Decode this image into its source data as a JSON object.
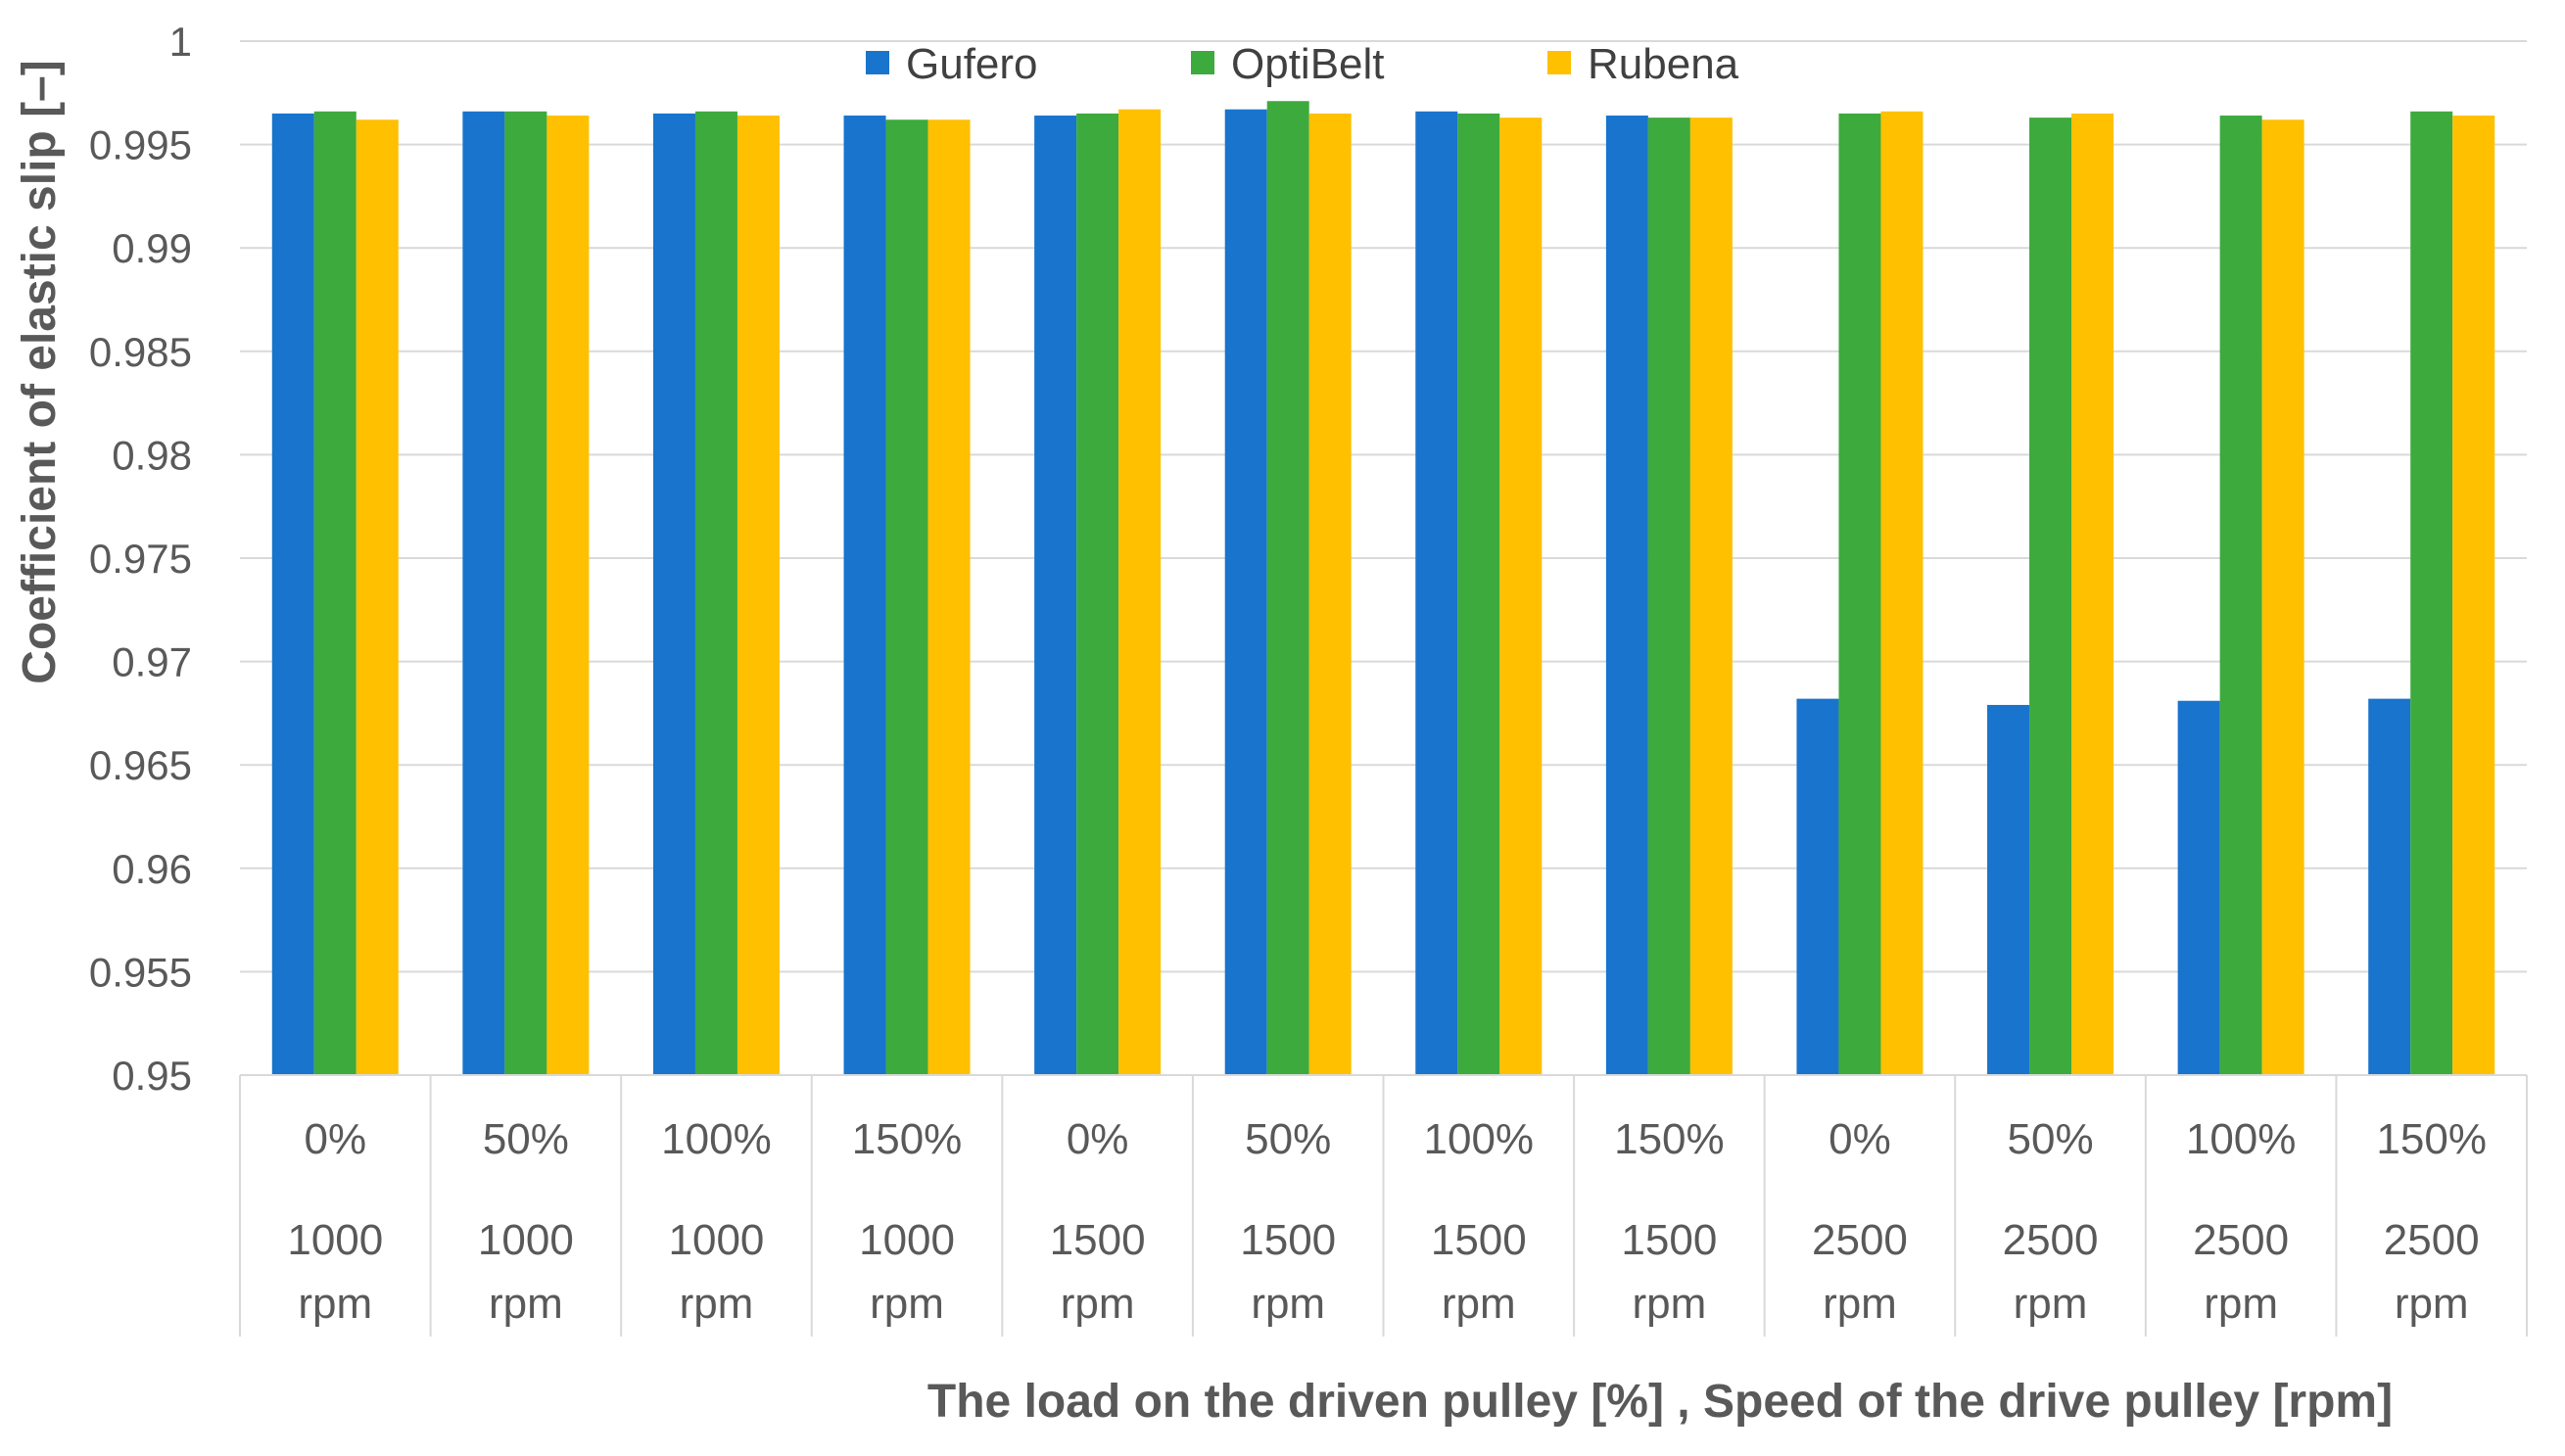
{
  "chart_data": {
    "type": "bar",
    "title": "",
    "ylabel": "Coefficient of elastic slip [–]",
    "xlabel": "The load on the driven pulley [%] , Speed of the drive pulley [rpm]",
    "ylim": [
      0.95,
      1.0
    ],
    "yticks": [
      "0.95",
      "0.955",
      "0.96",
      "0.965",
      "0.97",
      "0.975",
      "0.98",
      "0.985",
      "0.99",
      "0.995",
      "1"
    ],
    "legend_position": "top",
    "categories": [
      {
        "load": "0%",
        "speed": "1000",
        "unit": "rpm"
      },
      {
        "load": "50%",
        "speed": "1000",
        "unit": "rpm"
      },
      {
        "load": "100%",
        "speed": "1000",
        "unit": "rpm"
      },
      {
        "load": "150%",
        "speed": "1000",
        "unit": "rpm"
      },
      {
        "load": "0%",
        "speed": "1500",
        "unit": "rpm"
      },
      {
        "load": "50%",
        "speed": "1500",
        "unit": "rpm"
      },
      {
        "load": "100%",
        "speed": "1500",
        "unit": "rpm"
      },
      {
        "load": "150%",
        "speed": "1500",
        "unit": "rpm"
      },
      {
        "load": "0%",
        "speed": "2500",
        "unit": "rpm"
      },
      {
        "load": "50%",
        "speed": "2500",
        "unit": "rpm"
      },
      {
        "load": "100%",
        "speed": "2500",
        "unit": "rpm"
      },
      {
        "load": "150%",
        "speed": "2500",
        "unit": "rpm"
      }
    ],
    "series": [
      {
        "name": "Gufero",
        "color": "#1874CD",
        "values": [
          0.9965,
          0.9966,
          0.9965,
          0.9964,
          0.9964,
          0.9967,
          0.9966,
          0.9964,
          0.9682,
          0.9679,
          0.9681,
          0.9682
        ]
      },
      {
        "name": "OptiBelt",
        "color": "#3DAA3D",
        "values": [
          0.9966,
          0.9966,
          0.9966,
          0.9962,
          0.9965,
          0.9971,
          0.9965,
          0.9963,
          0.9965,
          0.9963,
          0.9964,
          0.9966
        ]
      },
      {
        "name": "Rubena",
        "color": "#FFC000",
        "values": [
          0.9962,
          0.9964,
          0.9964,
          0.9962,
          0.9967,
          0.9965,
          0.9963,
          0.9963,
          0.9966,
          0.9965,
          0.9962,
          0.9964
        ]
      }
    ]
  }
}
